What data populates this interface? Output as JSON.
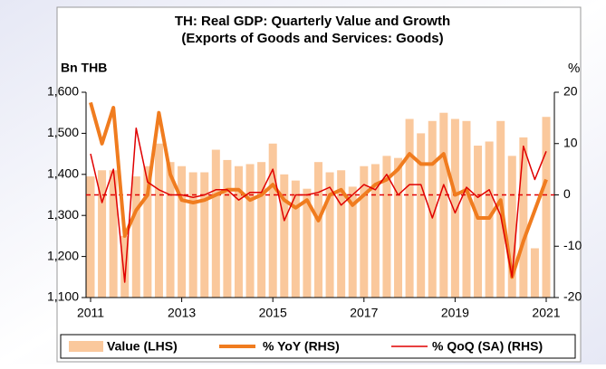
{
  "chart_data": {
    "type": "bar_line",
    "title": "TH: Real GDP: Quarterly Value and Growth",
    "subtitle": "(Exports of Goods and Services: Goods)",
    "ylabel": "Bn THB",
    "y2label": "%",
    "categories": [
      "2011",
      null,
      null,
      null,
      null,
      null,
      null,
      null,
      "2013",
      null,
      null,
      null,
      null,
      null,
      null,
      null,
      "2015",
      null,
      null,
      null,
      null,
      null,
      null,
      null,
      "2017",
      null,
      null,
      null,
      null,
      null,
      null,
      null,
      "2019",
      null,
      null,
      null,
      null,
      null,
      null,
      null,
      "2021"
    ],
    "series": [
      {
        "name": "Value (LHS)",
        "type": "bar",
        "color": "#fac89c",
        "values": [
          1395,
          1410,
          1410,
          1250,
          1395,
          1420,
          1475,
          1430,
          1420,
          1405,
          1405,
          1460,
          1435,
          1420,
          1425,
          1430,
          1475,
          1400,
          1385,
          1365,
          1430,
          1405,
          1410,
          1370,
          1420,
          1425,
          1445,
          1440,
          1535,
          1500,
          1530,
          1550,
          1535,
          1530,
          1470,
          1480,
          1530,
          1445,
          1490,
          1220,
          1540
        ]
      },
      {
        "name": "% YoY (RHS)",
        "type": "line",
        "axis": "y2",
        "color": "#f07c1f",
        "values": [
          18,
          10,
          17,
          -8,
          -3,
          0,
          16,
          4,
          -1,
          -1.5,
          -1,
          0,
          1,
          1,
          -1,
          0,
          2,
          -1,
          -2.5,
          -1,
          -5,
          0,
          1,
          -2,
          0,
          2,
          3,
          5,
          8,
          6,
          6,
          8,
          0,
          1,
          -4.5,
          -4.5,
          -1,
          -16,
          -9,
          -3,
          3
        ]
      },
      {
        "name": "% QoQ (SA) (RHS)",
        "type": "line",
        "axis": "y2",
        "color": "#e00000",
        "values": [
          8,
          -1.5,
          5,
          -17,
          13,
          2.5,
          1,
          0,
          0,
          -0.5,
          0,
          1,
          1,
          -1,
          0.5,
          0.5,
          5,
          -5,
          0,
          0,
          0.5,
          1.5,
          -2,
          0,
          2,
          1,
          4,
          0,
          2,
          2,
          -4.5,
          2,
          -3.5,
          1.5,
          -0.5,
          1,
          -4,
          -16,
          9.5,
          3,
          8.5
        ]
      }
    ],
    "reference_line": {
      "value": 0,
      "axis": "y2",
      "color": "#e00000"
    },
    "ylim": [
      1100,
      1600
    ],
    "yticks": [
      {
        "value": 1100,
        "label": "1,100"
      },
      {
        "value": 1200,
        "label": "1,200"
      },
      {
        "value": 1300,
        "label": "1,300"
      },
      {
        "value": 1400,
        "label": "1,400"
      },
      {
        "value": 1500,
        "label": "1,500"
      },
      {
        "value": 1600,
        "label": "1,600"
      }
    ],
    "y2lim": [
      -20,
      20
    ],
    "y2ticks": [
      -20,
      -10,
      0,
      10,
      20
    ],
    "legend": "bottom"
  }
}
